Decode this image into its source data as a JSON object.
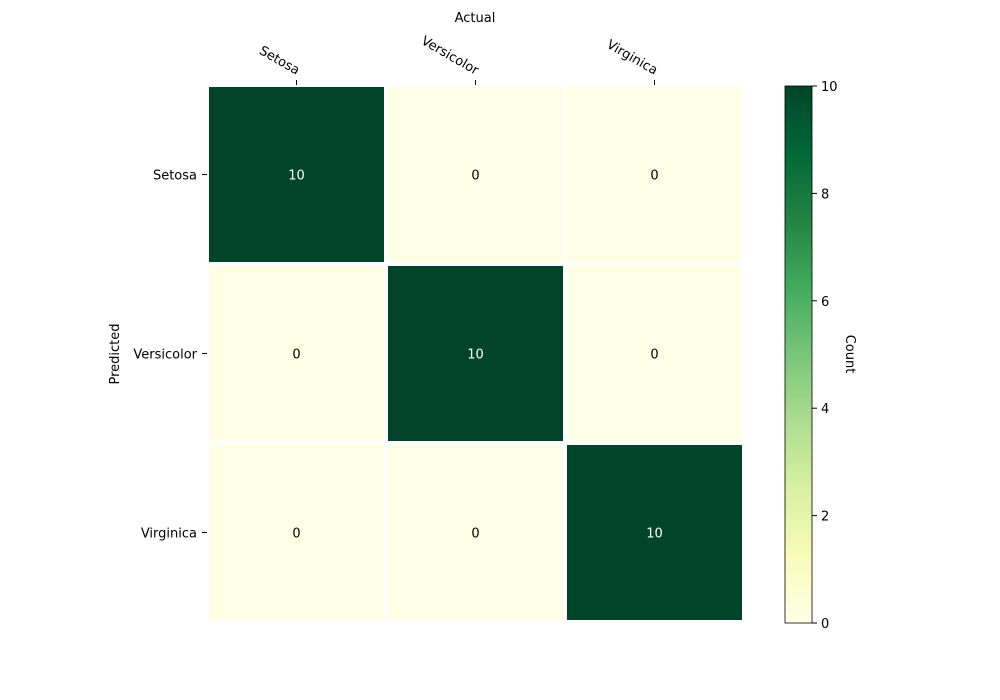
{
  "chart_data": {
    "type": "heatmap",
    "xlabel": "Actual",
    "ylabel": "Predicted",
    "x_categories": [
      "Setosa",
      "Versicolor",
      "Virginica"
    ],
    "y_categories": [
      "Setosa",
      "Versicolor",
      "Virginica"
    ],
    "values": [
      [
        10,
        0,
        0
      ],
      [
        0,
        10,
        0
      ],
      [
        0,
        0,
        10
      ]
    ],
    "colorbar": {
      "label": "Count",
      "range": [
        0,
        10
      ],
      "ticks": [
        "0",
        "2",
        "4",
        "6",
        "8",
        "10"
      ],
      "colormap": [
        "#ffffe5",
        "#f7fcb9",
        "#d9f0a3",
        "#addd8e",
        "#78c679",
        "#41ab5d",
        "#238443",
        "#006837",
        "#004529"
      ]
    },
    "low_text_color": "#000000",
    "high_text_color": "#ffffff"
  }
}
